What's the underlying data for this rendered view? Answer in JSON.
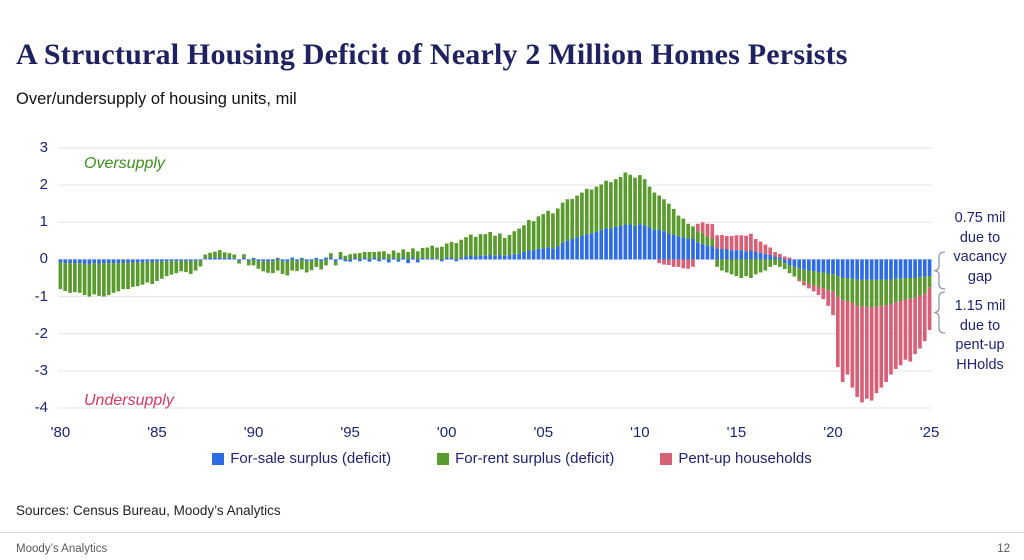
{
  "header": {
    "title": "A Structural Housing Deficit of Nearly 2 Million Homes Persists",
    "subtitle": "Over/undersupply of housing units, mil"
  },
  "annotations": {
    "oversupply": "Oversupply",
    "undersupply": "Undersupply",
    "vacancy": "0.75 mil\ndue to\nvacancy\ngap",
    "pentup": "1.15 mil\ndue to\npent-up\nHHolds"
  },
  "legend": {
    "items": [
      {
        "label": "For-sale surplus (deficit)",
        "color": "#2d6ce5"
      },
      {
        "label": "For-rent surplus (deficit)",
        "color": "#5a9a2f"
      },
      {
        "label": "Pent-up households",
        "color": "#d75f76"
      }
    ]
  },
  "sources": {
    "text": "Sources: Census Bureau, Moody’s Analytics"
  },
  "footer": {
    "brand": "Moody’s Analytics",
    "page": "12"
  },
  "chart_data": {
    "type": "bar",
    "stacked": true,
    "title": "Over/undersupply of housing units, mil",
    "frequency": "quarterly",
    "start_year": 1980,
    "end_year": 2025,
    "ylim": [
      -4,
      3
    ],
    "yticks": [
      3,
      2,
      1,
      0,
      -1,
      -2,
      -3,
      -4
    ],
    "xtick_labels": [
      "'80",
      "'85",
      "'90",
      "'95",
      "'00",
      "'05",
      "'10",
      "'15",
      "'20",
      "'25"
    ],
    "grid": true,
    "legend_position": "bottom",
    "series_names": [
      "For-sale surplus (deficit)",
      "For-rent surplus (deficit)",
      "Pent-up households"
    ],
    "series_colors": [
      "#2d6ce5",
      "#5a9a2f",
      "#d75f76"
    ],
    "gridline_color": "#e4e4e4",
    "note_values": {
      "vacancy_gap_mil": 0.75,
      "pent_up_hholds_mil": 1.15
    },
    "quarters": [
      [
        -0.08,
        -0.72,
        0
      ],
      [
        -0.1,
        -0.75,
        0
      ],
      [
        -0.1,
        -0.8,
        0
      ],
      [
        -0.1,
        -0.78,
        0
      ],
      [
        -0.1,
        -0.8,
        0
      ],
      [
        -0.12,
        -0.84,
        0
      ],
      [
        -0.12,
        -0.88,
        0
      ],
      [
        -0.1,
        -0.84,
        0
      ],
      [
        -0.12,
        -0.86,
        0
      ],
      [
        -0.1,
        -0.9,
        0
      ],
      [
        -0.1,
        -0.86,
        0
      ],
      [
        -0.1,
        -0.8,
        0
      ],
      [
        -0.1,
        -0.76,
        0
      ],
      [
        -0.08,
        -0.72,
        0
      ],
      [
        -0.1,
        -0.7,
        0
      ],
      [
        -0.08,
        -0.66,
        0
      ],
      [
        -0.08,
        -0.64,
        0
      ],
      [
        -0.08,
        -0.6,
        0
      ],
      [
        -0.06,
        -0.56,
        0
      ],
      [
        -0.08,
        -0.58,
        0
      ],
      [
        -0.06,
        -0.52,
        0
      ],
      [
        -0.06,
        -0.46,
        0
      ],
      [
        -0.05,
        -0.4,
        0
      ],
      [
        -0.05,
        -0.36,
        0
      ],
      [
        -0.05,
        -0.32,
        0
      ],
      [
        -0.04,
        -0.28,
        0
      ],
      [
        -0.04,
        -0.3,
        0
      ],
      [
        -0.05,
        -0.34,
        0
      ],
      [
        -0.04,
        -0.26,
        0
      ],
      [
        -0.03,
        -0.16,
        0
      ],
      [
        0.03,
        0.1,
        0
      ],
      [
        0.04,
        0.14,
        0
      ],
      [
        0.04,
        0.17,
        0
      ],
      [
        0.05,
        0.2,
        0
      ],
      [
        0.04,
        0.15,
        0
      ],
      [
        0.05,
        0.12,
        0
      ],
      [
        0.03,
        0.1,
        0
      ],
      [
        -0.03,
        -0.08,
        0
      ],
      [
        0.04,
        0.1,
        0
      ],
      [
        -0.04,
        -0.12,
        0
      ],
      [
        0.04,
        -0.16,
        0
      ],
      [
        -0.05,
        -0.2,
        0
      ],
      [
        -0.05,
        -0.27,
        0
      ],
      [
        -0.06,
        -0.3,
        0
      ],
      [
        -0.05,
        -0.32,
        0
      ],
      [
        0.04,
        -0.3,
        0
      ],
      [
        -0.05,
        -0.34,
        0
      ],
      [
        -0.06,
        -0.37,
        0
      ],
      [
        0.05,
        -0.3,
        0
      ],
      [
        -0.05,
        -0.26,
        0
      ],
      [
        0.04,
        -0.27,
        0
      ],
      [
        -0.05,
        -0.3,
        0
      ],
      [
        -0.04,
        -0.25,
        0
      ],
      [
        0.04,
        -0.2,
        0
      ],
      [
        -0.05,
        -0.22,
        0
      ],
      [
        0.05,
        -0.16,
        0
      ],
      [
        0.05,
        0.12,
        0
      ],
      [
        -0.06,
        -0.1,
        0
      ],
      [
        0.05,
        0.15,
        0
      ],
      [
        -0.05,
        0.1,
        0
      ],
      [
        -0.06,
        0.14,
        0
      ],
      [
        0.04,
        0.12,
        0
      ],
      [
        -0.05,
        0.17,
        0
      ],
      [
        0.05,
        0.15,
        0
      ],
      [
        -0.06,
        0.2,
        0
      ],
      [
        0.05,
        0.15,
        0
      ],
      [
        -0.05,
        0.21,
        0
      ],
      [
        0.04,
        0.18,
        0
      ],
      [
        -0.08,
        0.15,
        0
      ],
      [
        0.04,
        0.2,
        0
      ],
      [
        -0.06,
        0.18,
        0
      ],
      [
        0.05,
        0.22,
        0
      ],
      [
        -0.1,
        0.2,
        0
      ],
      [
        0.05,
        0.25,
        0
      ],
      [
        -0.08,
        0.22,
        0
      ],
      [
        0.04,
        0.27,
        0
      ],
      [
        0.02,
        0.3,
        0
      ],
      [
        0.04,
        0.33,
        0
      ],
      [
        0.02,
        0.3,
        0
      ],
      [
        -0.05,
        0.34,
        0
      ],
      [
        0.05,
        0.38,
        0
      ],
      [
        0.05,
        0.42,
        0
      ],
      [
        -0.05,
        0.44,
        0
      ],
      [
        0.05,
        0.48,
        0
      ],
      [
        0.08,
        0.52,
        0
      ],
      [
        0.1,
        0.57,
        0
      ],
      [
        0.08,
        0.53,
        0
      ],
      [
        0.1,
        0.58,
        0
      ],
      [
        0.1,
        0.58,
        0
      ],
      [
        0.12,
        0.62,
        0
      ],
      [
        0.1,
        0.54,
        0
      ],
      [
        0.12,
        0.58,
        0
      ],
      [
        0.1,
        0.48,
        0
      ],
      [
        0.12,
        0.54,
        0
      ],
      [
        0.14,
        0.62,
        0
      ],
      [
        0.15,
        0.68,
        0
      ],
      [
        0.2,
        0.72,
        0
      ],
      [
        0.24,
        0.82,
        0
      ],
      [
        0.25,
        0.78,
        0
      ],
      [
        0.28,
        0.88,
        0
      ],
      [
        0.3,
        0.92,
        0
      ],
      [
        0.33,
        0.98,
        0
      ],
      [
        0.3,
        0.94,
        0
      ],
      [
        0.35,
        1.02,
        0
      ],
      [
        0.45,
        1.08,
        0
      ],
      [
        0.5,
        1.12,
        0
      ],
      [
        0.55,
        1.08,
        0
      ],
      [
        0.6,
        1.12,
        0
      ],
      [
        0.64,
        1.16,
        0
      ],
      [
        0.68,
        1.22,
        0
      ],
      [
        0.7,
        1.18,
        0
      ],
      [
        0.74,
        1.22,
        0
      ],
      [
        0.78,
        1.24,
        0
      ],
      [
        0.84,
        1.28,
        0
      ],
      [
        0.84,
        1.24,
        0
      ],
      [
        0.88,
        1.28,
        0
      ],
      [
        0.9,
        1.32,
        0
      ],
      [
        0.94,
        1.4,
        0
      ],
      [
        0.94,
        1.34,
        0
      ],
      [
        0.9,
        1.3,
        0
      ],
      [
        0.95,
        1.32,
        0
      ],
      [
        0.92,
        1.24,
        0
      ],
      [
        0.86,
        1.1,
        0
      ],
      [
        0.8,
        1.0,
        0
      ],
      [
        0.8,
        0.92,
        -0.1
      ],
      [
        0.76,
        0.86,
        -0.14
      ],
      [
        0.7,
        0.8,
        -0.15
      ],
      [
        0.66,
        0.7,
        -0.2
      ],
      [
        0.62,
        0.56,
        -0.2
      ],
      [
        0.6,
        0.5,
        -0.24
      ],
      [
        0.56,
        0.4,
        -0.25
      ],
      [
        0.55,
        0.34,
        -0.2
      ],
      [
        0.46,
        0.3,
        0.2
      ],
      [
        0.42,
        0.3,
        0.28
      ],
      [
        0.38,
        0.24,
        0.34
      ],
      [
        0.35,
        0.2,
        0.4
      ],
      [
        0.3,
        -0.2,
        0.35
      ],
      [
        0.28,
        -0.3,
        0.38
      ],
      [
        0.28,
        -0.35,
        0.35
      ],
      [
        0.25,
        -0.4,
        0.38
      ],
      [
        0.25,
        -0.45,
        0.4
      ],
      [
        0.25,
        -0.5,
        0.4
      ],
      [
        0.22,
        -0.45,
        0.42
      ],
      [
        0.24,
        -0.5,
        0.45
      ],
      [
        0.2,
        -0.4,
        0.35
      ],
      [
        0.18,
        -0.35,
        0.3
      ],
      [
        0.15,
        -0.3,
        0.25
      ],
      [
        0.12,
        -0.2,
        0.2
      ],
      [
        0.08,
        -0.15,
        0.12
      ],
      [
        0.05,
        -0.2,
        0.1
      ],
      [
        -0.1,
        -0.16,
        0.08
      ],
      [
        -0.15,
        -0.22,
        0.05
      ],
      [
        -0.2,
        -0.26,
        0.0
      ],
      [
        -0.24,
        -0.3,
        -0.05
      ],
      [
        -0.28,
        -0.32,
        -0.1
      ],
      [
        -0.3,
        -0.36,
        -0.12
      ],
      [
        -0.32,
        -0.38,
        -0.16
      ],
      [
        -0.34,
        -0.4,
        -0.22
      ],
      [
        -0.35,
        -0.42,
        -0.3
      ],
      [
        -0.38,
        -0.45,
        -0.42
      ],
      [
        -0.4,
        -0.46,
        -0.64
      ],
      [
        -0.45,
        -0.55,
        -1.9
      ],
      [
        -0.5,
        -0.6,
        -2.2
      ],
      [
        -0.5,
        -0.62,
        -1.98
      ],
      [
        -0.52,
        -0.65,
        -2.28
      ],
      [
        -0.55,
        -0.7,
        -2.45
      ],
      [
        -0.55,
        -0.72,
        -2.58
      ],
      [
        -0.55,
        -0.72,
        -2.48
      ],
      [
        -0.55,
        -0.74,
        -2.51
      ],
      [
        -0.55,
        -0.72,
        -2.33
      ],
      [
        -0.55,
        -0.7,
        -2.2
      ],
      [
        -0.55,
        -0.68,
        -2.07
      ],
      [
        -0.55,
        -0.65,
        -1.9
      ],
      [
        -0.52,
        -0.63,
        -1.8
      ],
      [
        -0.52,
        -0.6,
        -1.73
      ],
      [
        -0.5,
        -0.58,
        -1.62
      ],
      [
        -0.5,
        -0.56,
        -1.69
      ],
      [
        -0.5,
        -0.52,
        -1.53
      ],
      [
        -0.48,
        -0.5,
        -1.42
      ],
      [
        -0.47,
        -0.45,
        -1.28
      ],
      [
        -0.45,
        -0.3,
        -1.15
      ]
    ]
  }
}
